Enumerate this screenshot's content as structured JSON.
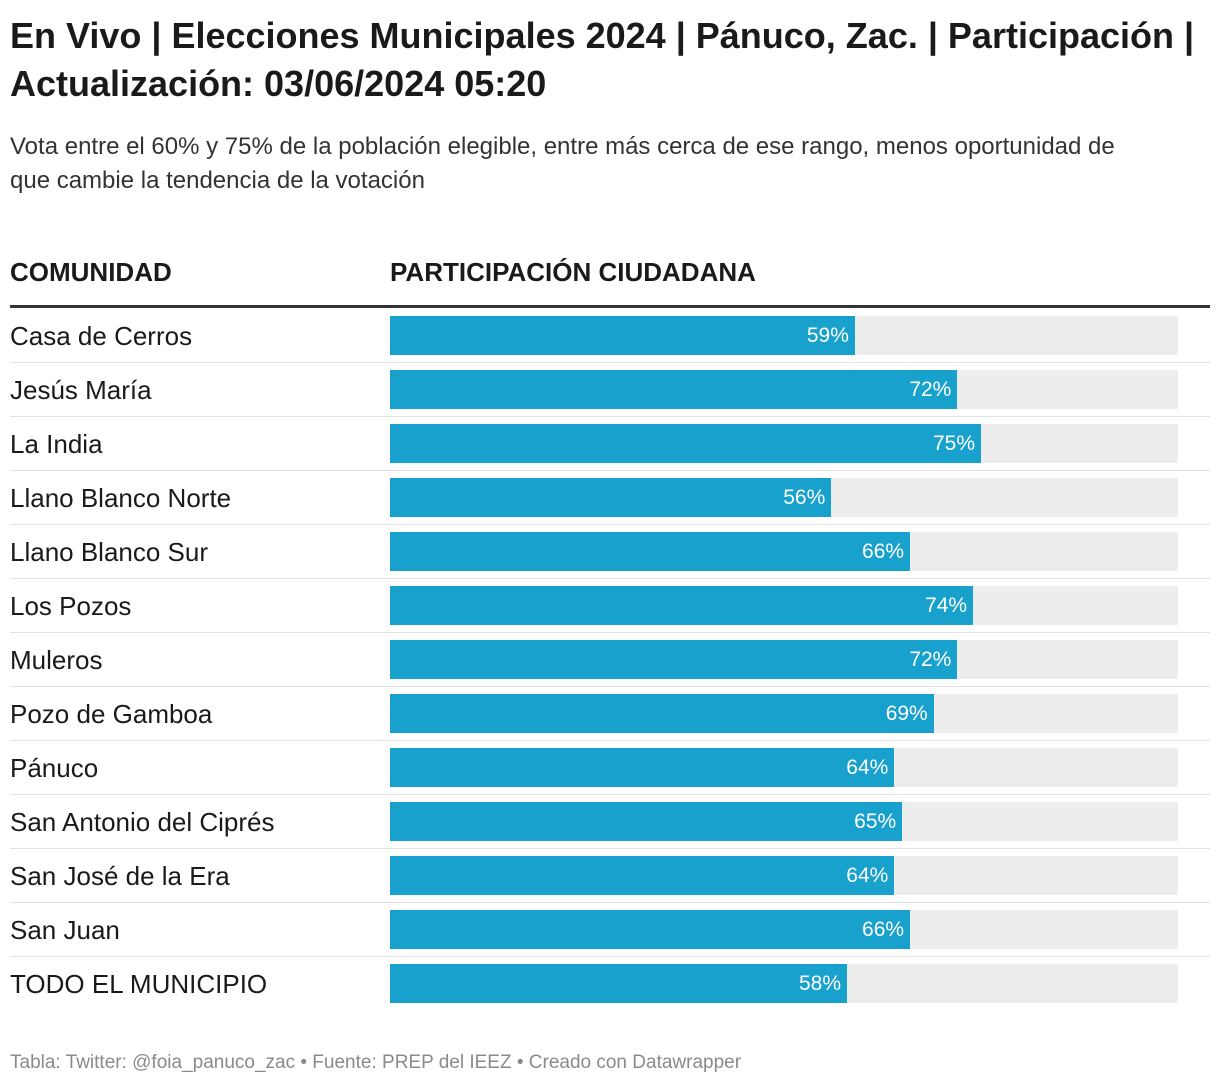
{
  "header": {
    "title": "En Vivo | Elecciones Municipales 2024 | Pánuco, Zac. | Participación | Actualización: 03/06/2024 05:20",
    "subtitle": "Vota entre el 60% y 75% de la población elegible, entre más cerca de ese rango, menos oportunidad de que cambie la tendencia de la votación"
  },
  "table": {
    "col1_header": "COMUNIDAD",
    "col2_header": "PARTICIPACIÓN CIUDADANA"
  },
  "footer": {
    "text": "Tabla: Twitter: @foia_panuco_zac • Fuente: PREP del IEEZ • Creado con Datawrapper"
  },
  "colors": {
    "bar": "#18a1cd",
    "track": "#ededed",
    "value_text": "#ffffff"
  },
  "chart_data": {
    "type": "bar",
    "orientation": "horizontal",
    "title": "En Vivo | Elecciones Municipales 2024 | Pánuco, Zac. | Participación | Actualización: 03/06/2024 05:20",
    "xlabel": "PARTICIPACIÓN CIUDADANA",
    "ylabel": "COMUNIDAD",
    "xlim": [
      0,
      100
    ],
    "categories": [
      "Casa de Cerros",
      "Jesús María",
      "La India",
      "Llano Blanco Norte",
      "Llano Blanco Sur",
      "Los Pozos",
      "Muleros",
      "Pozo de Gamboa",
      "Pánuco",
      "San Antonio del Ciprés",
      "San José de la Era",
      "San Juan",
      "TODO EL MUNICIPIO"
    ],
    "values": [
      59,
      72,
      75,
      56,
      66,
      74,
      72,
      69,
      64,
      65,
      64,
      66,
      58
    ],
    "labels": [
      "59%",
      "72%",
      "75%",
      "56%",
      "66%",
      "74%",
      "72%",
      "69%",
      "64%",
      "65%",
      "64%",
      "66%",
      "58%"
    ]
  }
}
